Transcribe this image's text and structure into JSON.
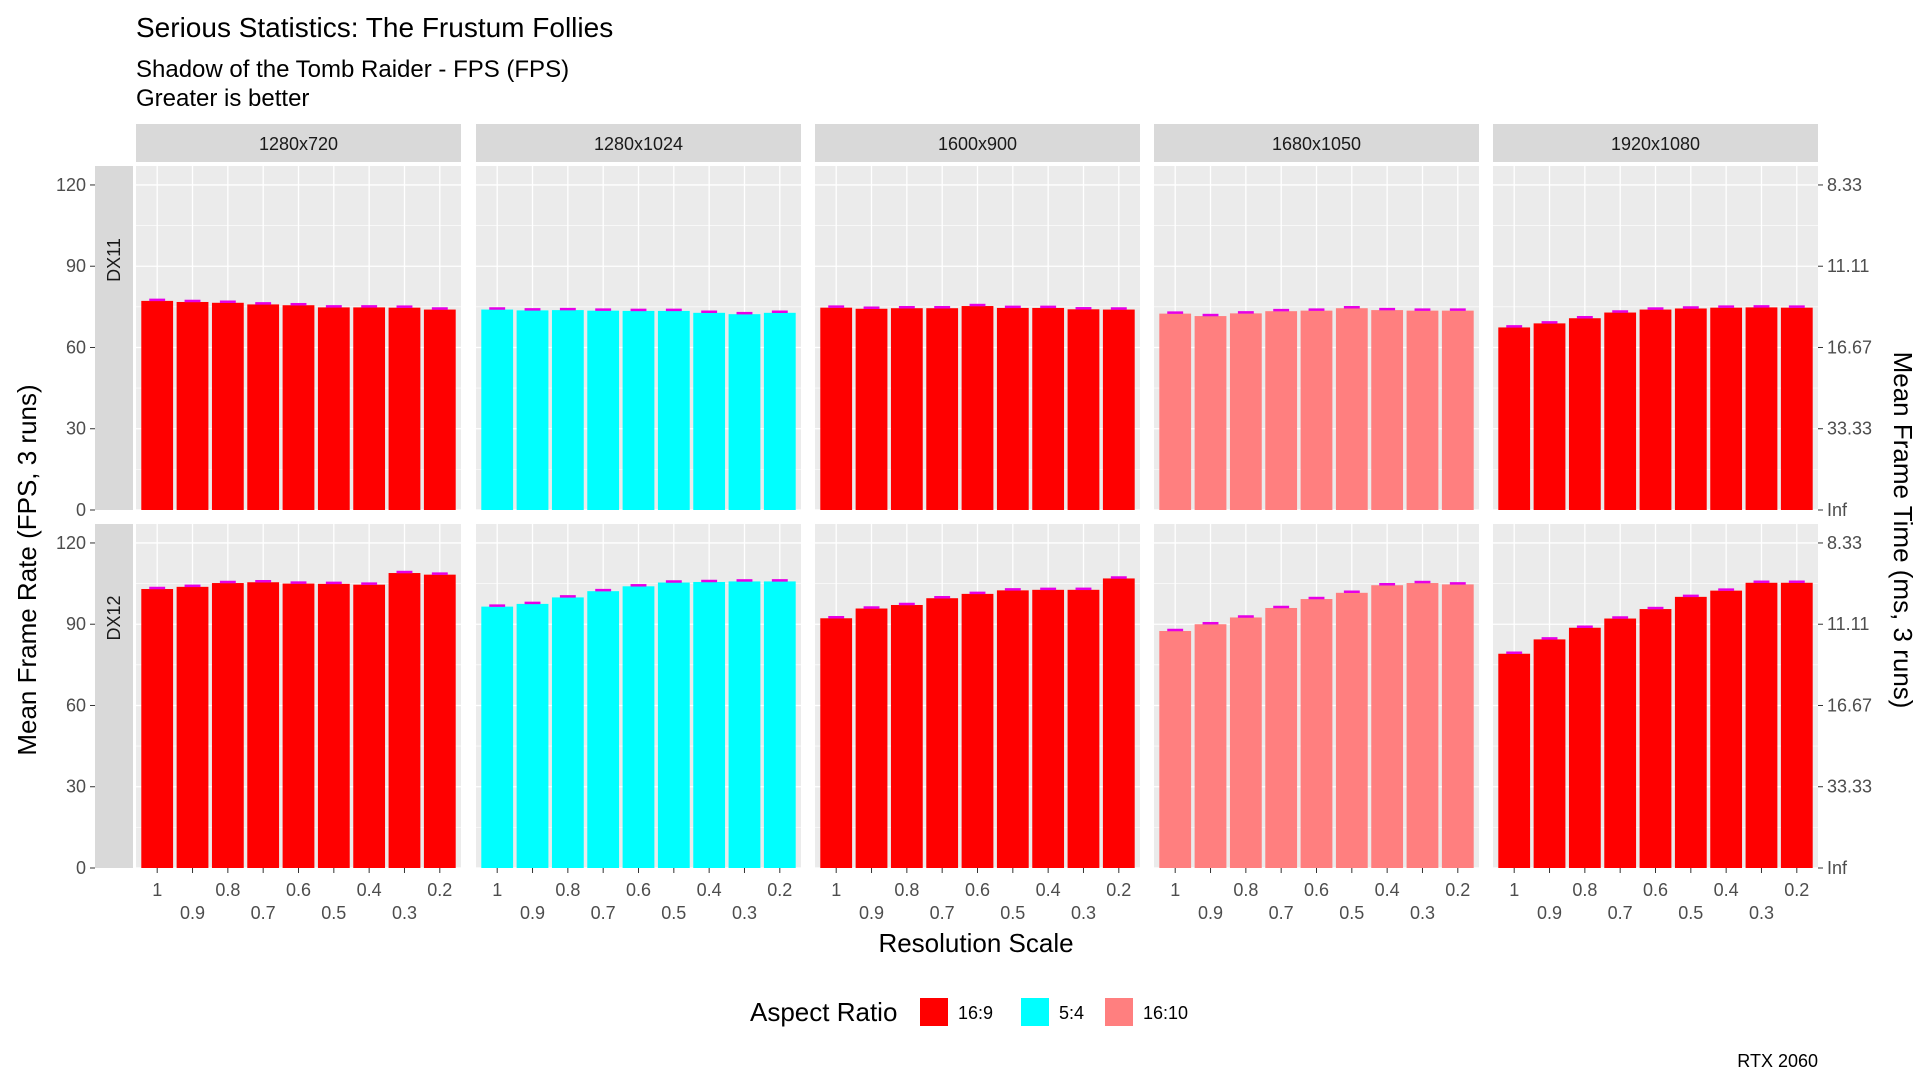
{
  "title": "Serious Statistics: The Frustum Follies",
  "subtitle_line1": "Shadow of the Tomb Raider - FPS (FPS)",
  "subtitle_line2": "Greater is better",
  "caption": "RTX 2060",
  "colors": {
    "16:9": "#ff0000",
    "5:4": "#00ffff",
    "16:10": "#ff7f7f",
    "error_bar": "#e600e6",
    "panel_bg": "#ebebeb",
    "strip_bg": "#d9d9d9",
    "grid": "#ffffff"
  },
  "chart_data": {
    "type": "bar",
    "xlabel": "Resolution Scale",
    "ylabel": "Mean Frame Rate (FPS, 3 runs)",
    "y2label": "Mean Frame Time (ms, 3 runs)",
    "ylim": [
      0,
      127
    ],
    "y_ticks": [
      0,
      30,
      60,
      90,
      120
    ],
    "y2_tick_labels": [
      "Inf",
      "33.33",
      "16.67",
      "11.11",
      "8.33"
    ],
    "x_categories": [
      "1",
      "0.9",
      "0.8",
      "0.7",
      "0.6",
      "0.5",
      "0.4",
      "0.3",
      "0.2"
    ],
    "grid": true,
    "legend_title": "Aspect Ratio",
    "legend_position": "bottom",
    "legend": [
      "16:9",
      "5:4",
      "16:10"
    ],
    "columns": [
      {
        "resolution": "1280x720",
        "aspect": "16:9"
      },
      {
        "resolution": "1280x1024",
        "aspect": "5:4"
      },
      {
        "resolution": "1600x900",
        "aspect": "16:9"
      },
      {
        "resolution": "1680x1050",
        "aspect": "16:10"
      },
      {
        "resolution": "1920x1080",
        "aspect": "16:9"
      }
    ],
    "rows": [
      {
        "api": "DX11",
        "values": [
          [
            77.2,
            76.8,
            76.5,
            75.9,
            75.6,
            74.8,
            74.8,
            74.7,
            74.0
          ],
          [
            74.0,
            73.7,
            73.8,
            73.6,
            73.5,
            73.5,
            72.8,
            72.3,
            72.8
          ],
          [
            74.7,
            74.3,
            74.5,
            74.5,
            75.3,
            74.6,
            74.6,
            74.1,
            74.0
          ],
          [
            72.5,
            71.6,
            72.6,
            73.4,
            73.6,
            74.5,
            73.8,
            73.6,
            73.6
          ],
          [
            67.4,
            68.9,
            70.8,
            72.9,
            74.0,
            74.4,
            74.7,
            74.8,
            74.7
          ]
        ]
      },
      {
        "api": "DX12",
        "values": [
          [
            103.0,
            103.8,
            105.2,
            105.5,
            105.0,
            104.9,
            104.6,
            108.9,
            108.3
          ],
          [
            96.5,
            97.5,
            99.9,
            102.2,
            104.0,
            105.4,
            105.6,
            105.8,
            105.8
          ],
          [
            92.2,
            95.8,
            97.1,
            99.6,
            101.2,
            102.5,
            102.7,
            102.7,
            106.9
          ],
          [
            87.5,
            90.0,
            92.5,
            96.0,
            99.3,
            101.6,
            104.4,
            105.2,
            104.7
          ],
          [
            79.1,
            84.4,
            88.7,
            92.1,
            95.6,
            100.1,
            102.4,
            105.3,
            105.3
          ]
        ]
      }
    ]
  }
}
